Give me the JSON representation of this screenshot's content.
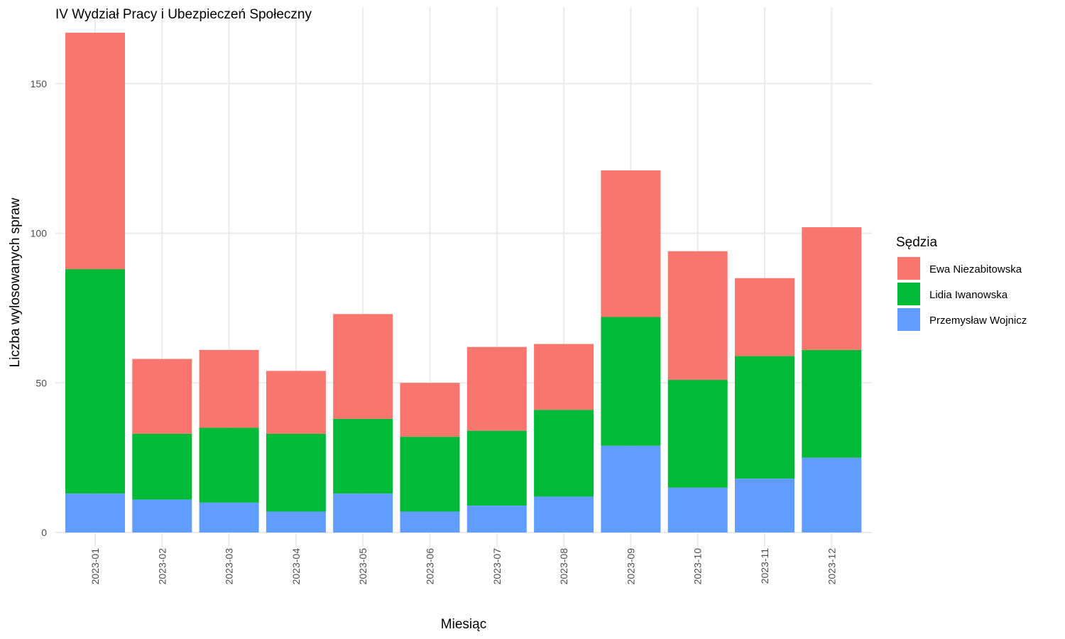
{
  "chart_data": {
    "type": "bar",
    "stacked": true,
    "title": "IV Wydział Pracy i Ubezpieczeń Społeczny",
    "xlabel": "Miesiąc",
    "ylabel": "Liczba wylosowanych spraw",
    "ylim": [
      0,
      167
    ],
    "yticks": [
      0,
      50,
      100,
      150
    ],
    "grid": true,
    "legend_title": "Sędzia",
    "legend_position": "right",
    "categories": [
      "2023-01",
      "2023-02",
      "2023-03",
      "2023-04",
      "2023-05",
      "2023-06",
      "2023-07",
      "2023-08",
      "2023-09",
      "2023-10",
      "2023-11",
      "2023-12"
    ],
    "series": [
      {
        "name": "Ewa Niezabitowska",
        "color": "#F8766D",
        "values": [
          79,
          25,
          26,
          21,
          35,
          18,
          28,
          22,
          49,
          43,
          26,
          41
        ]
      },
      {
        "name": "Lidia Iwanowska",
        "color": "#00BA38",
        "values": [
          75,
          22,
          25,
          26,
          25,
          25,
          25,
          29,
          43,
          36,
          41,
          36
        ]
      },
      {
        "name": "Przemysław Wojnicz",
        "color": "#619CFF",
        "values": [
          13,
          11,
          10,
          7,
          13,
          7,
          9,
          12,
          29,
          15,
          18,
          25
        ]
      }
    ]
  }
}
